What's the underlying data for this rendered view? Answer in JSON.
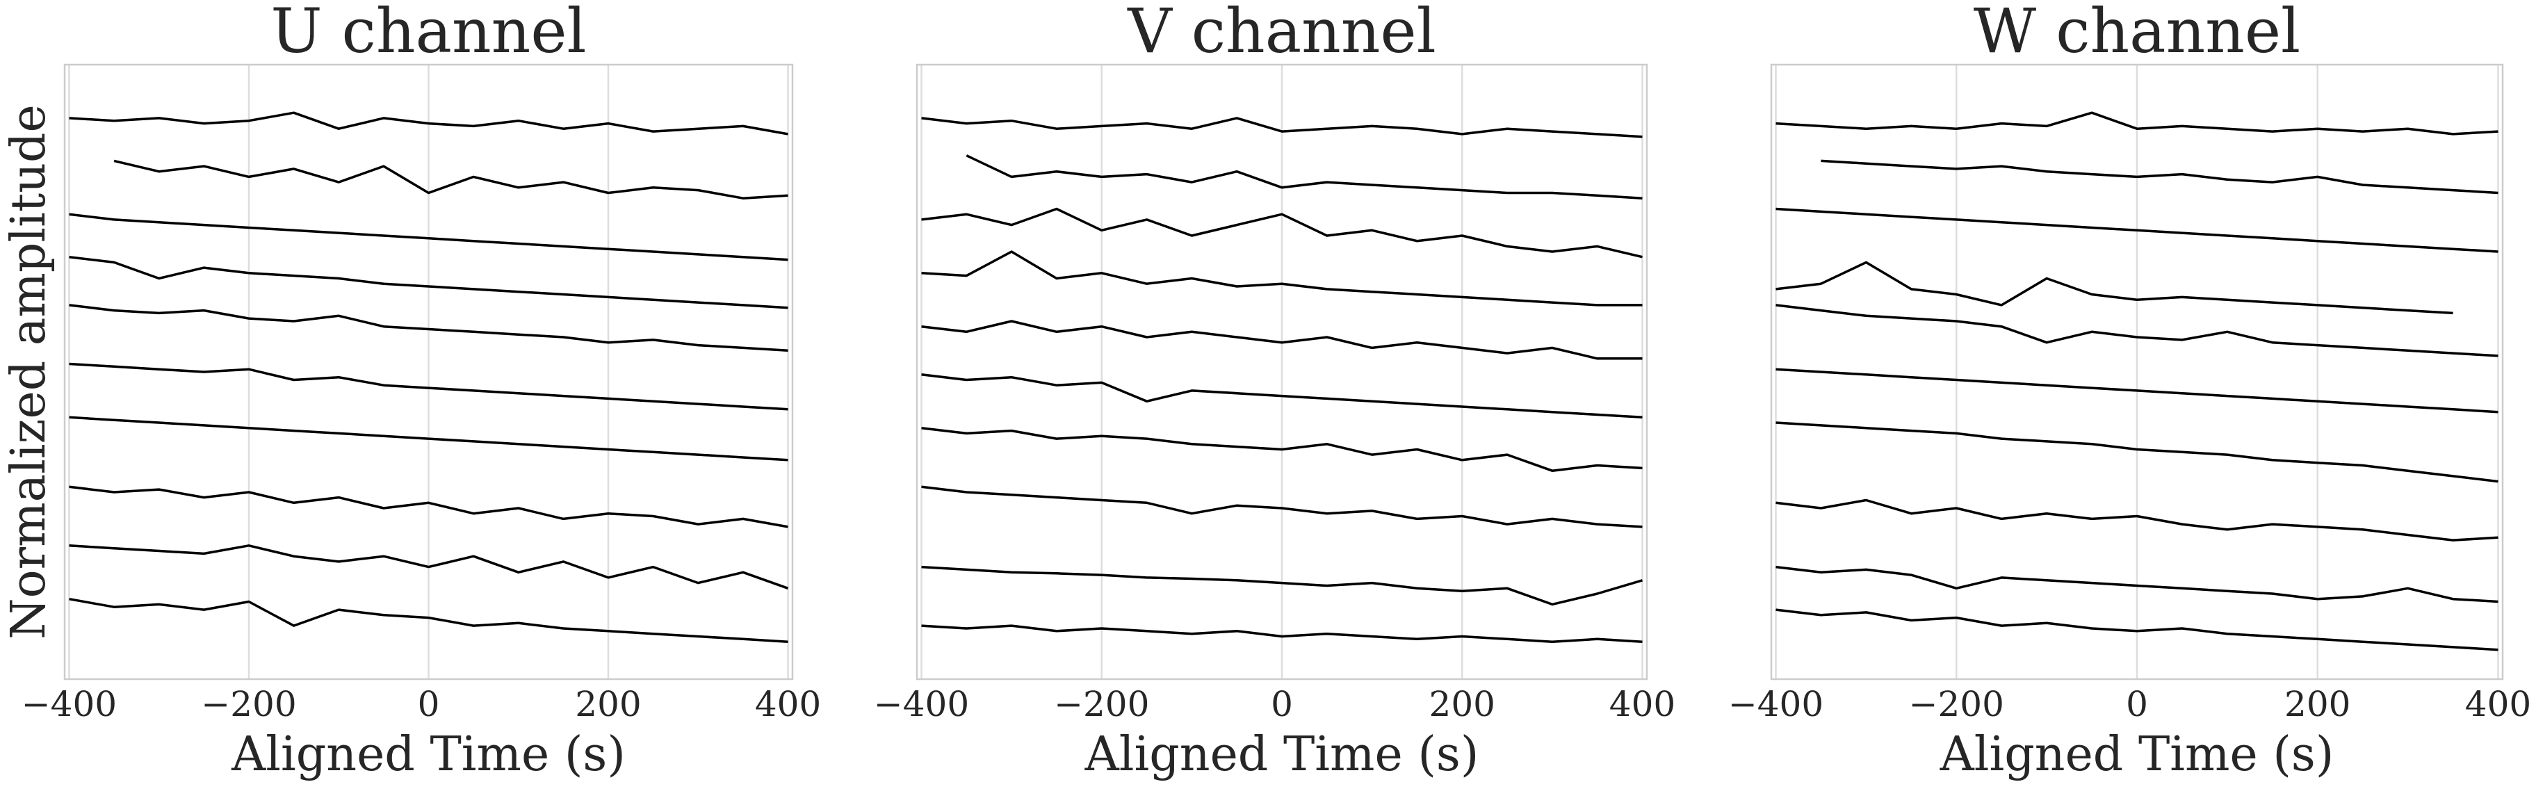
{
  "chart_data": [
    {
      "type": "line",
      "title": "U channel",
      "xlabel": "Aligned Time (s)",
      "ylabel": "Normalized amplitude",
      "x": [
        -400,
        -350,
        -300,
        -250,
        -200,
        -150,
        -100,
        -50,
        0,
        50,
        100,
        150,
        200,
        250,
        300,
        350,
        400
      ],
      "xlim": [
        -405,
        405
      ],
      "ylim": [
        0,
        11.5
      ],
      "xticks": [
        {
          "value": -400,
          "label": "−400"
        },
        {
          "value": -200,
          "label": "−200"
        },
        0,
        200,
        400
      ],
      "grid": true,
      "series": [
        {
          "color": "#000000",
          "values": [
            10.5,
            10.45,
            10.5,
            10.4,
            10.45,
            10.6,
            10.3,
            10.5,
            10.4,
            10.35,
            10.45,
            10.3,
            10.4,
            10.25,
            10.3,
            10.35,
            10.2
          ]
        },
        {
          "color": "#000000",
          "values": [
            null,
            9.7,
            9.5,
            9.6,
            9.4,
            9.55,
            9.3,
            9.6,
            9.1,
            9.4,
            9.2,
            9.3,
            9.1,
            9.2,
            9.15,
            9.0,
            9.05
          ]
        },
        {
          "color": "#000000",
          "values": [
            8.7,
            8.6,
            8.55,
            8.5,
            8.45,
            8.4,
            8.35,
            8.3,
            8.25,
            8.2,
            8.15,
            8.1,
            8.05,
            8.0,
            7.95,
            7.9,
            7.85
          ]
        },
        {
          "color": "#000000",
          "values": [
            7.9,
            7.8,
            7.5,
            7.7,
            7.6,
            7.55,
            7.5,
            7.4,
            7.35,
            7.3,
            7.25,
            7.2,
            7.15,
            7.1,
            7.05,
            7.0,
            6.95
          ]
        },
        {
          "color": "#000000",
          "values": [
            7.0,
            6.9,
            6.85,
            6.9,
            6.75,
            6.7,
            6.8,
            6.6,
            6.55,
            6.5,
            6.45,
            6.4,
            6.3,
            6.35,
            6.25,
            6.2,
            6.15
          ]
        },
        {
          "color": "#000000",
          "values": [
            5.9,
            5.85,
            5.8,
            5.75,
            5.8,
            5.6,
            5.65,
            5.5,
            5.45,
            5.4,
            5.35,
            5.3,
            5.25,
            5.2,
            5.15,
            5.1,
            5.05
          ]
        },
        {
          "color": "#000000",
          "values": [
            4.9,
            4.85,
            4.8,
            4.75,
            4.7,
            4.65,
            4.6,
            4.55,
            4.5,
            4.45,
            4.4,
            4.35,
            4.3,
            4.25,
            4.2,
            4.15,
            4.1
          ]
        },
        {
          "color": "#000000",
          "values": [
            3.6,
            3.5,
            3.55,
            3.4,
            3.5,
            3.3,
            3.4,
            3.2,
            3.3,
            3.1,
            3.2,
            3.0,
            3.1,
            3.05,
            2.9,
            3.0,
            2.85
          ]
        },
        {
          "color": "#000000",
          "values": [
            2.5,
            2.45,
            2.4,
            2.35,
            2.5,
            2.3,
            2.2,
            2.3,
            2.1,
            2.3,
            2.0,
            2.2,
            1.9,
            2.1,
            1.8,
            2.0,
            1.7
          ]
        },
        {
          "color": "#000000",
          "values": [
            1.5,
            1.35,
            1.4,
            1.3,
            1.45,
            1.0,
            1.3,
            1.2,
            1.15,
            1.0,
            1.05,
            0.95,
            0.9,
            0.85,
            0.8,
            0.75,
            0.7
          ]
        }
      ]
    },
    {
      "type": "line",
      "title": "V channel",
      "xlabel": "Aligned Time (s)",
      "x": [
        -400,
        -350,
        -300,
        -250,
        -200,
        -150,
        -100,
        -50,
        0,
        50,
        100,
        150,
        200,
        250,
        300,
        350,
        400
      ],
      "xlim": [
        -405,
        405
      ],
      "ylim": [
        0,
        11.5
      ],
      "xticks": [
        {
          "value": -400,
          "label": "−400"
        },
        {
          "value": -200,
          "label": "−200"
        },
        0,
        200,
        400
      ],
      "grid": true,
      "series": [
        {
          "color": "#000000",
          "values": [
            10.5,
            10.4,
            10.45,
            10.3,
            10.35,
            10.4,
            10.3,
            10.5,
            10.25,
            10.3,
            10.35,
            10.3,
            10.2,
            10.3,
            10.25,
            10.2,
            10.15
          ]
        },
        {
          "color": "#000000",
          "values": [
            null,
            9.8,
            9.4,
            9.5,
            9.4,
            9.45,
            9.3,
            9.5,
            9.2,
            9.3,
            9.25,
            9.2,
            9.15,
            9.1,
            9.1,
            9.05,
            9.0
          ]
        },
        {
          "color": "#000000",
          "values": [
            8.6,
            8.7,
            8.5,
            8.8,
            8.4,
            8.6,
            8.3,
            8.5,
            8.7,
            8.3,
            8.4,
            8.2,
            8.3,
            8.1,
            8.0,
            8.1,
            7.9
          ]
        },
        {
          "color": "#000000",
          "values": [
            7.6,
            7.55,
            8.0,
            7.5,
            7.6,
            7.4,
            7.5,
            7.35,
            7.4,
            7.3,
            7.25,
            7.2,
            7.15,
            7.1,
            7.05,
            7.0,
            7.0
          ]
        },
        {
          "color": "#000000",
          "values": [
            6.6,
            6.5,
            6.7,
            6.5,
            6.6,
            6.4,
            6.5,
            6.4,
            6.3,
            6.4,
            6.2,
            6.3,
            6.2,
            6.1,
            6.2,
            6.0,
            6.0
          ]
        },
        {
          "color": "#000000",
          "values": [
            5.7,
            5.6,
            5.65,
            5.5,
            5.55,
            5.2,
            5.4,
            5.35,
            5.3,
            5.25,
            5.2,
            5.15,
            5.1,
            5.05,
            5.0,
            4.95,
            4.9
          ]
        },
        {
          "color": "#000000",
          "values": [
            4.7,
            4.6,
            4.65,
            4.5,
            4.55,
            4.5,
            4.4,
            4.35,
            4.3,
            4.4,
            4.2,
            4.3,
            4.1,
            4.2,
            3.9,
            4.0,
            3.95
          ]
        },
        {
          "color": "#000000",
          "values": [
            3.6,
            3.5,
            3.45,
            3.4,
            3.35,
            3.3,
            3.1,
            3.25,
            3.2,
            3.1,
            3.15,
            3.0,
            3.05,
            2.9,
            3.0,
            2.9,
            2.85
          ]
        },
        {
          "color": "#000000",
          "values": [
            2.1,
            2.05,
            2.0,
            1.98,
            1.95,
            1.9,
            1.88,
            1.85,
            1.8,
            1.75,
            1.8,
            1.7,
            1.65,
            1.7,
            1.4,
            1.6,
            1.85
          ]
        },
        {
          "color": "#000000",
          "values": [
            1.0,
            0.95,
            1.0,
            0.9,
            0.95,
            0.9,
            0.85,
            0.9,
            0.8,
            0.85,
            0.8,
            0.75,
            0.8,
            0.75,
            0.7,
            0.75,
            0.7
          ]
        }
      ]
    },
    {
      "type": "line",
      "title": "W channel",
      "xlabel": "Aligned Time (s)",
      "x": [
        -400,
        -350,
        -300,
        -250,
        -200,
        -150,
        -100,
        -50,
        0,
        50,
        100,
        150,
        200,
        250,
        300,
        350,
        400
      ],
      "xlim": [
        -405,
        405
      ],
      "ylim": [
        0,
        11.5
      ],
      "xticks": [
        {
          "value": -400,
          "label": "−400"
        },
        {
          "value": -200,
          "label": "−200"
        },
        0,
        200,
        400
      ],
      "grid": true,
      "series": [
        {
          "color": "#000000",
          "values": [
            10.4,
            10.35,
            10.3,
            10.35,
            10.3,
            10.4,
            10.35,
            10.6,
            10.3,
            10.35,
            10.3,
            10.25,
            10.3,
            10.25,
            10.3,
            10.2,
            10.25
          ]
        },
        {
          "color": "#000000",
          "values": [
            null,
            9.7,
            9.65,
            9.6,
            9.55,
            9.6,
            9.5,
            9.45,
            9.4,
            9.45,
            9.35,
            9.3,
            9.4,
            9.25,
            9.2,
            9.15,
            9.1
          ]
        },
        {
          "color": "#000000",
          "values": [
            8.8,
            8.75,
            8.7,
            8.65,
            8.6,
            8.55,
            8.5,
            8.45,
            8.4,
            8.35,
            8.3,
            8.25,
            8.2,
            8.15,
            8.1,
            8.05,
            8.0
          ]
        },
        {
          "color": "#000000",
          "values": [
            7.3,
            7.4,
            7.8,
            7.3,
            7.2,
            7.0,
            7.5,
            7.2,
            7.1,
            7.15,
            7.1,
            7.05,
            7.0,
            6.95,
            6.9,
            6.85,
            null
          ]
        },
        {
          "color": "#000000",
          "values": [
            7.0,
            6.9,
            6.8,
            6.75,
            6.7,
            6.6,
            6.3,
            6.5,
            6.4,
            6.35,
            6.5,
            6.3,
            6.25,
            6.2,
            6.15,
            6.1,
            6.05
          ]
        },
        {
          "color": "#000000",
          "values": [
            5.8,
            5.75,
            5.7,
            5.65,
            5.6,
            5.55,
            5.5,
            5.45,
            5.4,
            5.35,
            5.3,
            5.25,
            5.2,
            5.15,
            5.1,
            5.05,
            5.0
          ]
        },
        {
          "color": "#000000",
          "values": [
            4.8,
            4.75,
            4.7,
            4.65,
            4.6,
            4.5,
            4.45,
            4.4,
            4.3,
            4.25,
            4.2,
            4.1,
            4.05,
            4.0,
            3.9,
            3.8,
            3.7
          ]
        },
        {
          "color": "#000000",
          "values": [
            3.3,
            3.2,
            3.35,
            3.1,
            3.2,
            3.0,
            3.1,
            3.0,
            3.05,
            2.9,
            2.8,
            2.9,
            2.85,
            2.8,
            2.7,
            2.6,
            2.65
          ]
        },
        {
          "color": "#000000",
          "values": [
            2.1,
            2.0,
            2.05,
            1.95,
            1.7,
            1.9,
            1.85,
            1.8,
            1.75,
            1.7,
            1.65,
            1.6,
            1.5,
            1.55,
            1.7,
            1.5,
            1.45
          ]
        },
        {
          "color": "#000000",
          "values": [
            1.3,
            1.2,
            1.25,
            1.1,
            1.15,
            1.0,
            1.05,
            0.95,
            0.9,
            0.95,
            0.85,
            0.8,
            0.75,
            0.7,
            0.65,
            0.6,
            0.55
          ]
        }
      ]
    }
  ]
}
